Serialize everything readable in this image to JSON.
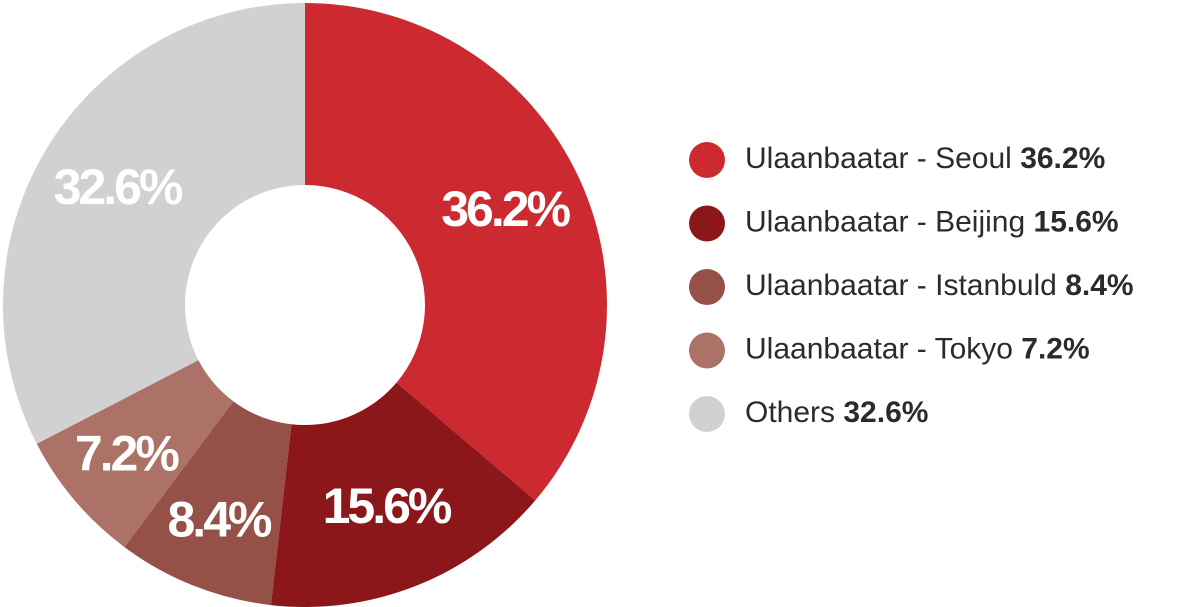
{
  "chart_data": {
    "type": "donut",
    "categories": [
      "Ulaanbaatar - Seoul",
      "Ulaanbaatar - Beijing",
      "Ulaanbaatar - Istanbuld",
      "Ulaanbaatar - Tokyo",
      "Others"
    ],
    "values": [
      36.2,
      15.6,
      8.4,
      7.2,
      32.6
    ],
    "value_labels": [
      "36.2%",
      "15.6%",
      "8.4%",
      "7.2%",
      "32.6%"
    ],
    "colors": [
      "#cc2a30",
      "#8b171b",
      "#955048",
      "#ac7268",
      "#d1d1d1"
    ],
    "legend": "right"
  }
}
